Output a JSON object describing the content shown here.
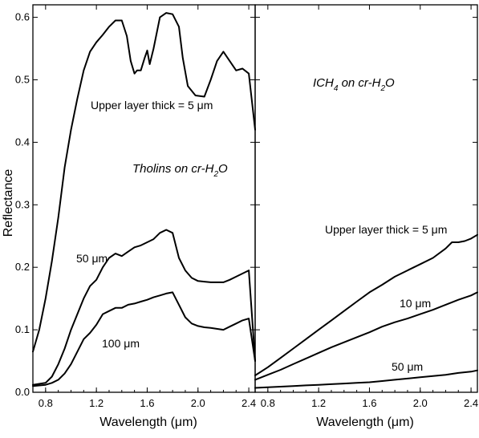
{
  "chart_data": [
    {
      "type": "line",
      "title": "Tholins on cr-H2O",
      "title_parts": {
        "main": "Tholins on cr-H",
        "sub": "2",
        "tail": "O"
      },
      "xlabel": "Wavelength (μm)",
      "ylabel": "Reflectance",
      "xlim": [
        0.7,
        2.45
      ],
      "ylim": [
        0,
        0.62
      ],
      "xticks": [
        0.8,
        1.2,
        1.6,
        2.0,
        2.4
      ],
      "xtick_labels": [
        "0.8",
        "1.2",
        "1.6",
        "2.0",
        "2.4"
      ],
      "yticks": [
        0,
        0.1,
        0.2,
        0.3,
        0.4,
        0.5,
        0.6
      ],
      "ytick_labels": [
        "0.0",
        "0.1",
        "0.2",
        "0.3",
        "0.4",
        "0.5",
        "0.6"
      ],
      "grid": false,
      "series": [
        {
          "name": "Upper layer thick = 5 μm",
          "x": [
            0.7,
            0.75,
            0.8,
            0.85,
            0.9,
            0.95,
            1.0,
            1.05,
            1.1,
            1.15,
            1.2,
            1.25,
            1.3,
            1.35,
            1.4,
            1.44,
            1.47,
            1.5,
            1.52,
            1.55,
            1.58,
            1.6,
            1.62,
            1.65,
            1.7,
            1.75,
            1.8,
            1.85,
            1.88,
            1.92,
            1.98,
            2.05,
            2.1,
            2.15,
            2.2,
            2.25,
            2.3,
            2.35,
            2.4,
            2.45
          ],
          "y": [
            0.065,
            0.1,
            0.15,
            0.21,
            0.28,
            0.36,
            0.42,
            0.47,
            0.515,
            0.545,
            0.56,
            0.572,
            0.585,
            0.595,
            0.595,
            0.57,
            0.53,
            0.51,
            0.515,
            0.515,
            0.535,
            0.547,
            0.525,
            0.55,
            0.6,
            0.607,
            0.605,
            0.585,
            0.535,
            0.49,
            0.475,
            0.473,
            0.5,
            0.53,
            0.545,
            0.53,
            0.515,
            0.518,
            0.51,
            0.42
          ]
        },
        {
          "name": "50 μm",
          "x": [
            0.7,
            0.8,
            0.85,
            0.9,
            0.95,
            1.0,
            1.05,
            1.1,
            1.15,
            1.2,
            1.25,
            1.3,
            1.35,
            1.4,
            1.45,
            1.5,
            1.55,
            1.6,
            1.65,
            1.7,
            1.75,
            1.8,
            1.85,
            1.9,
            1.95,
            2.0,
            2.05,
            2.1,
            2.2,
            2.25,
            2.3,
            2.35,
            2.4,
            2.45
          ],
          "y": [
            0.012,
            0.015,
            0.025,
            0.045,
            0.07,
            0.1,
            0.125,
            0.15,
            0.17,
            0.18,
            0.2,
            0.215,
            0.222,
            0.218,
            0.225,
            0.232,
            0.235,
            0.24,
            0.245,
            0.255,
            0.26,
            0.255,
            0.215,
            0.195,
            0.183,
            0.178,
            0.177,
            0.176,
            0.176,
            0.18,
            0.185,
            0.19,
            0.195,
            0.05
          ]
        },
        {
          "name": "100 μm",
          "x": [
            0.7,
            0.8,
            0.85,
            0.9,
            0.95,
            1.0,
            1.05,
            1.1,
            1.15,
            1.2,
            1.25,
            1.3,
            1.35,
            1.4,
            1.45,
            1.5,
            1.55,
            1.6,
            1.65,
            1.7,
            1.75,
            1.8,
            1.85,
            1.9,
            1.95,
            2.0,
            2.05,
            2.1,
            2.2,
            2.25,
            2.3,
            2.35,
            2.4,
            2.45
          ],
          "y": [
            0.01,
            0.012,
            0.015,
            0.02,
            0.03,
            0.045,
            0.065,
            0.085,
            0.095,
            0.108,
            0.125,
            0.13,
            0.135,
            0.135,
            0.14,
            0.142,
            0.145,
            0.148,
            0.152,
            0.155,
            0.158,
            0.16,
            0.14,
            0.12,
            0.11,
            0.106,
            0.104,
            0.103,
            0.1,
            0.105,
            0.11,
            0.115,
            0.118,
            0.05
          ]
        }
      ],
      "annotations": [
        "Upper layer thick = 5 μm",
        "50 μm",
        "100 μm"
      ]
    },
    {
      "type": "line",
      "title": "ICH4 on cr-H2O",
      "title_parts": {
        "pre": "ICH",
        "sub1": "4",
        "mid": " on cr-H",
        "sub2": "2",
        "tail": "O"
      },
      "xlabel": "Wavelength (μm)",
      "ylabel": "",
      "xlim": [
        0.7,
        2.45
      ],
      "ylim": [
        0,
        0.62
      ],
      "xticks": [
        0.8,
        1.2,
        1.6,
        2.0,
        2.4
      ],
      "xtick_labels": [
        "0.8",
        "1.2",
        "1.6",
        "2.0",
        "2.4"
      ],
      "grid": false,
      "series": [
        {
          "name": "Upper layer thick = 5 μm",
          "x": [
            0.7,
            0.8,
            0.9,
            1.0,
            1.1,
            1.2,
            1.3,
            1.4,
            1.5,
            1.6,
            1.7,
            1.8,
            1.9,
            2.0,
            2.1,
            2.2,
            2.25,
            2.3,
            2.35,
            2.4,
            2.45
          ],
          "y": [
            0.027,
            0.04,
            0.055,
            0.07,
            0.085,
            0.1,
            0.115,
            0.13,
            0.145,
            0.16,
            0.172,
            0.185,
            0.195,
            0.205,
            0.215,
            0.23,
            0.24,
            0.24,
            0.242,
            0.246,
            0.252
          ]
        },
        {
          "name": "10 μm",
          "x": [
            0.7,
            0.8,
            0.9,
            1.0,
            1.1,
            1.2,
            1.3,
            1.4,
            1.5,
            1.6,
            1.7,
            1.8,
            1.9,
            2.0,
            2.1,
            2.2,
            2.3,
            2.4,
            2.45
          ],
          "y": [
            0.02,
            0.028,
            0.036,
            0.045,
            0.054,
            0.063,
            0.072,
            0.08,
            0.088,
            0.096,
            0.105,
            0.112,
            0.118,
            0.125,
            0.132,
            0.14,
            0.148,
            0.155,
            0.16
          ]
        },
        {
          "name": "50 μm",
          "x": [
            0.7,
            0.8,
            0.9,
            1.0,
            1.1,
            1.2,
            1.3,
            1.4,
            1.5,
            1.6,
            1.7,
            1.8,
            1.9,
            2.0,
            2.1,
            2.2,
            2.3,
            2.4,
            2.45
          ],
          "y": [
            0.007,
            0.008,
            0.009,
            0.01,
            0.011,
            0.012,
            0.013,
            0.014,
            0.015,
            0.016,
            0.018,
            0.02,
            0.022,
            0.024,
            0.026,
            0.028,
            0.031,
            0.033,
            0.035
          ]
        }
      ],
      "annotations": [
        "Upper layer thick = 5 μm",
        "10 μm",
        "50 μm"
      ]
    }
  ]
}
